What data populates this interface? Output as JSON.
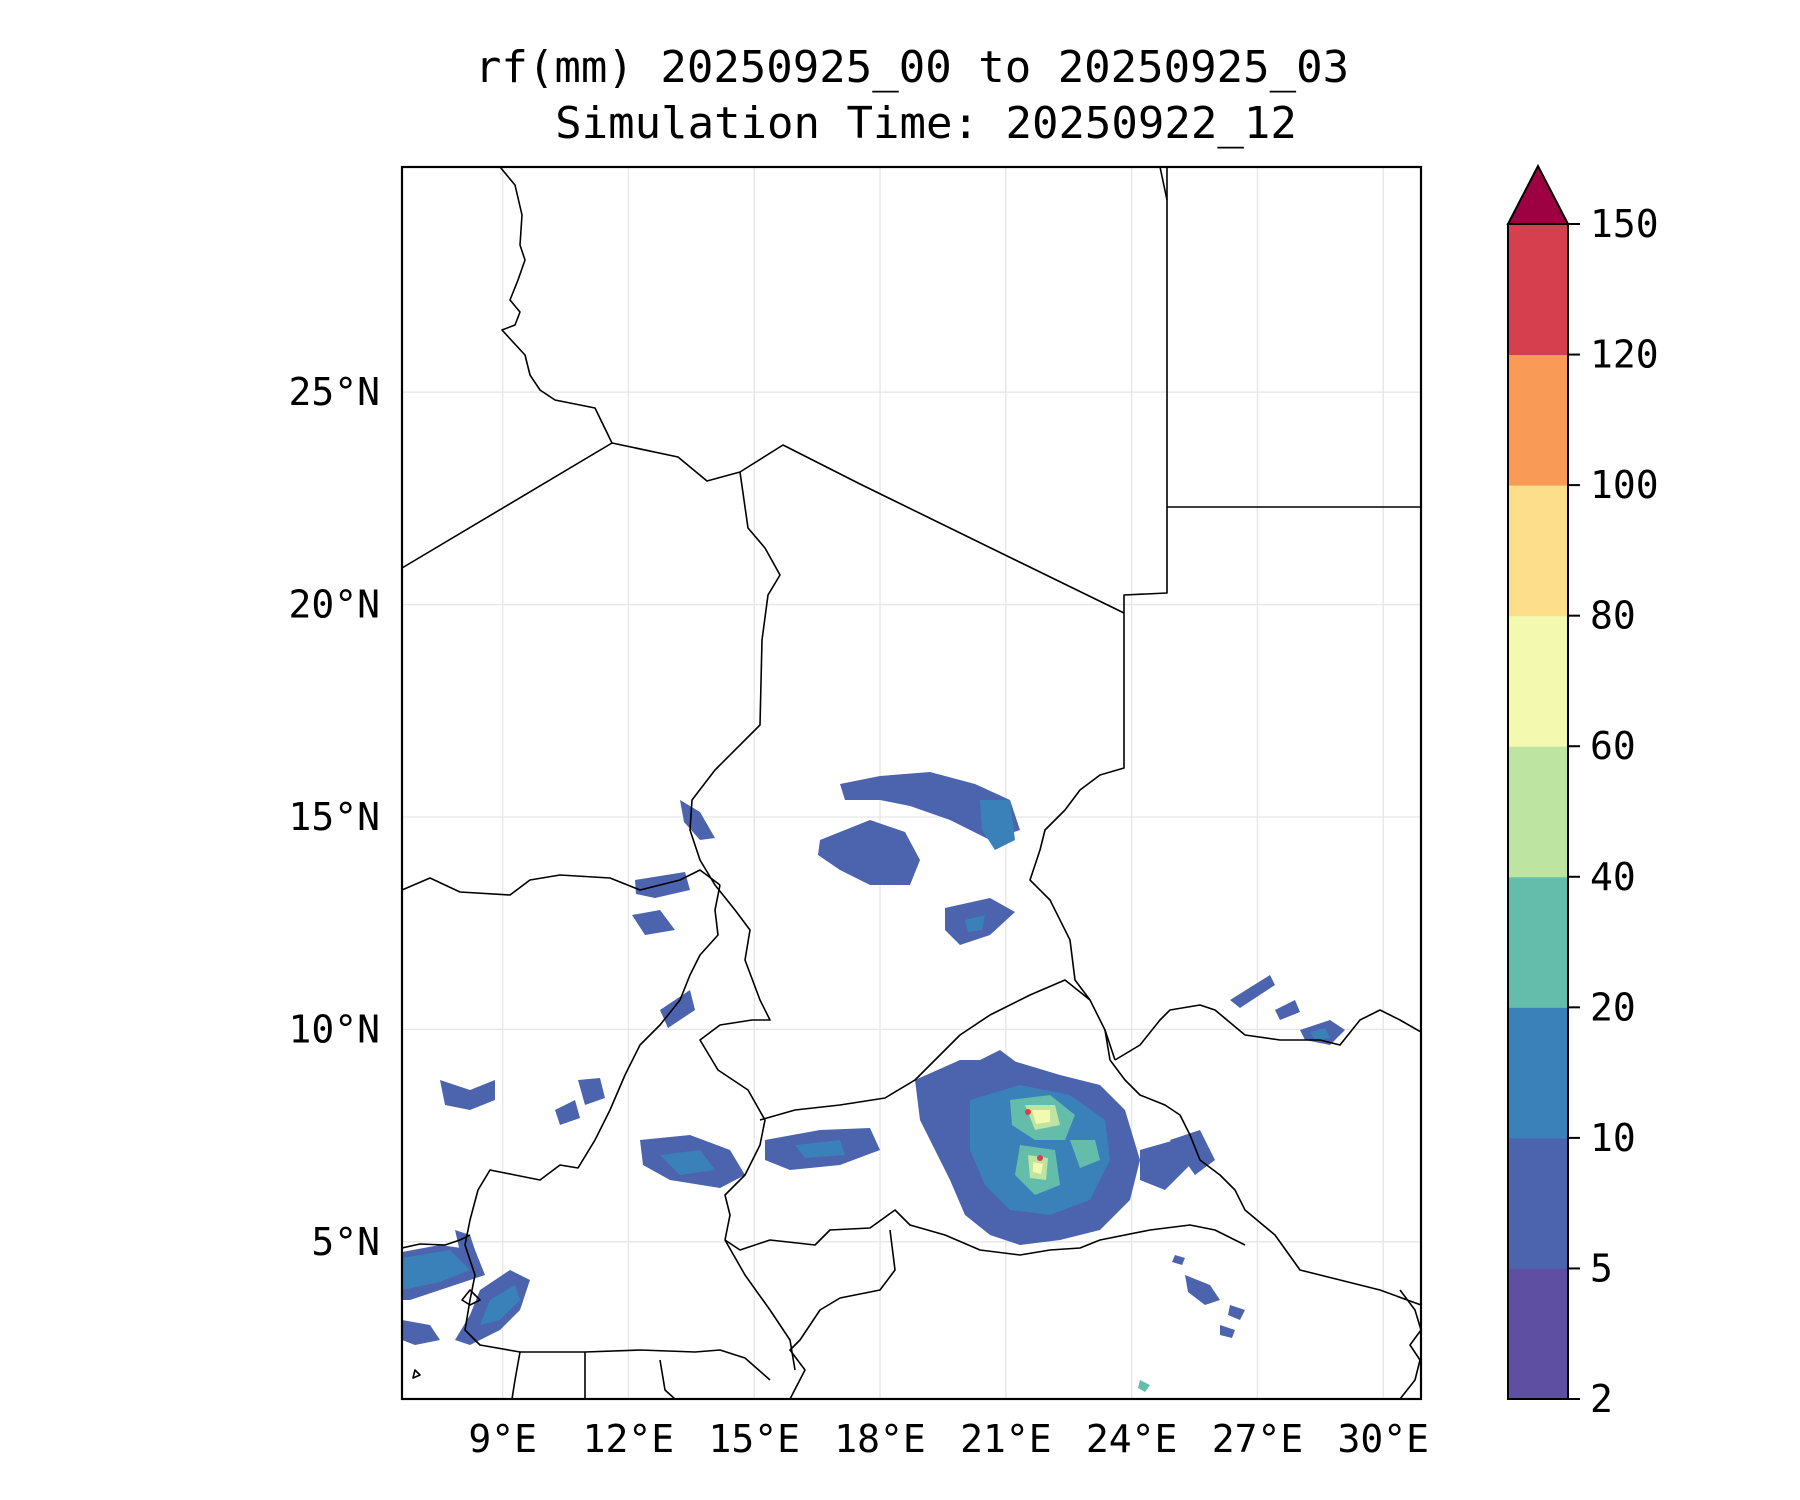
{
  "title": {
    "line1": "rf(mm) 20250925_00 to 20250925_03",
    "line2": "Simulation Time: 20250922_12"
  },
  "map": {
    "lon_range": [
      6.6,
      30.9
    ],
    "lat_range": [
      1.3,
      30.3
    ],
    "x_ticks": [
      {
        "lon": 9,
        "label": "9°E"
      },
      {
        "lon": 12,
        "label": "12°E"
      },
      {
        "lon": 15,
        "label": "15°E"
      },
      {
        "lon": 18,
        "label": "18°E"
      },
      {
        "lon": 21,
        "label": "21°E"
      },
      {
        "lon": 24,
        "label": "24°E"
      },
      {
        "lon": 27,
        "label": "27°E"
      },
      {
        "lon": 30,
        "label": "30°E"
      }
    ],
    "y_ticks": [
      {
        "lat": 5,
        "label": "5°N"
      },
      {
        "lat": 10,
        "label": "10°N"
      },
      {
        "lat": 15,
        "label": "15°N"
      },
      {
        "lat": 20,
        "label": "20°N"
      },
      {
        "lat": 25,
        "label": "25°N"
      }
    ],
    "grid": true
  },
  "colorbar": {
    "levels": [
      {
        "label": "2",
        "color": "#5e4fa2"
      },
      {
        "label": "5",
        "color": "#4c63ad"
      },
      {
        "label": "10",
        "color": "#3a81ba"
      },
      {
        "label": "20",
        "color": "#64bdaa"
      },
      {
        "label": "40",
        "color": "#bde4a0"
      },
      {
        "label": "60",
        "color": "#f3f9ae"
      },
      {
        "label": "80",
        "color": "#fddf8b"
      },
      {
        "label": "100",
        "color": "#fa9a57"
      },
      {
        "label": "120",
        "color": "#d6404e"
      },
      {
        "label": "150",
        "color": "#9e0142"
      }
    ],
    "extend": "max"
  }
}
